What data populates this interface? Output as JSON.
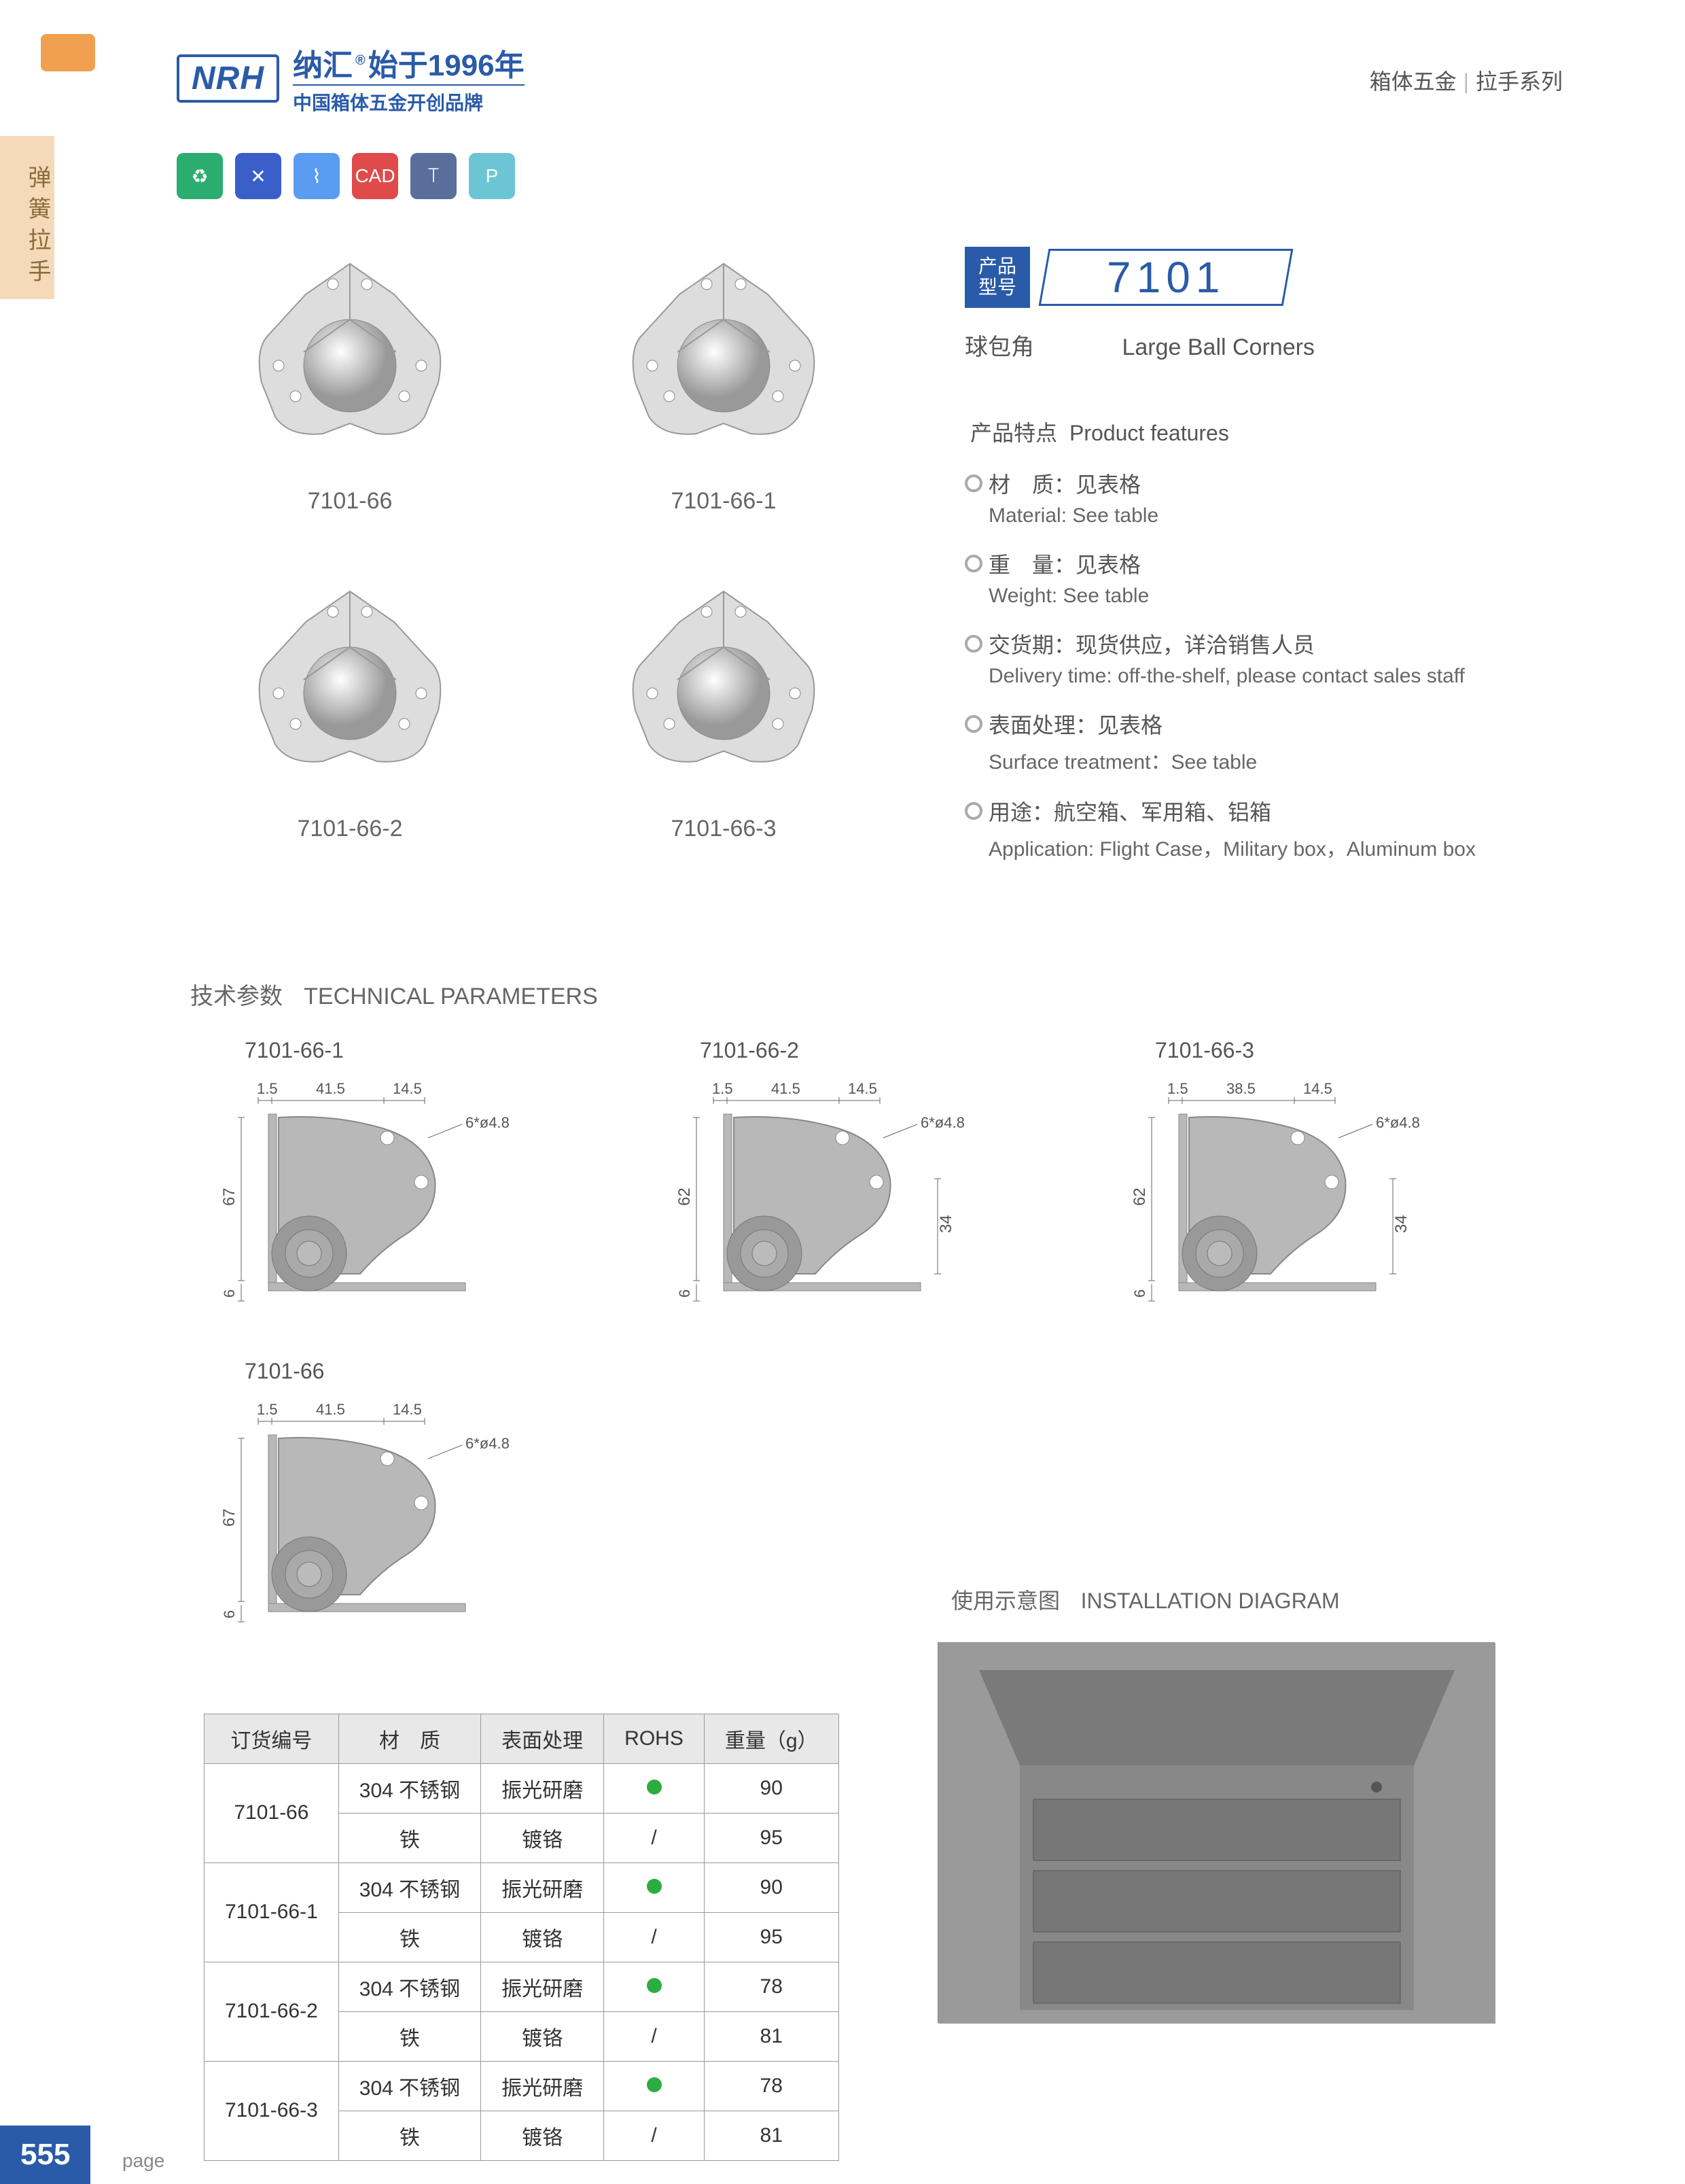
{
  "header": {
    "logo": "NRH",
    "brand_cn": "纳汇",
    "brand_year": "®",
    "brand_since": "始于1996年",
    "brand_sub": "中国箱体五金开创品牌",
    "right_cat1": "箱体五金",
    "right_cat2": "拉手系列"
  },
  "side_tab": "弹簧拉手",
  "feature_icons": [
    {
      "bg": "#2bad6f",
      "txt": "♻"
    },
    {
      "bg": "#3a5fc8",
      "txt": "✕"
    },
    {
      "bg": "#5a9cf0",
      "txt": "⌇"
    },
    {
      "bg": "#e04a4a",
      "txt": "CAD"
    },
    {
      "bg": "#5a6e9c",
      "txt": "⟙"
    },
    {
      "bg": "#6bc5d4",
      "txt": "P"
    }
  ],
  "products": [
    {
      "label": "7101-66"
    },
    {
      "label": "7101-66-1"
    },
    {
      "label": "7101-66-2"
    },
    {
      "label": "7101-66-3"
    }
  ],
  "model": {
    "tag_l1": "产品",
    "tag_l2": "型号",
    "number": "7101",
    "name_cn": "球包角",
    "name_en": "Large Ball Corners"
  },
  "features_title_cn": "产品特点",
  "features_title_en": "Product features",
  "features": [
    {
      "cn": "材　质：见表格",
      "en": "Material: See table"
    },
    {
      "cn": "重　量：见表格",
      "en": "Weight: See table"
    },
    {
      "cn": "交货期：现货供应，详洽销售人员",
      "en": "Delivery time: off-the-shelf, please contact sales staff"
    },
    {
      "cn": "表面处理：见表格",
      "en": "Surface treatment：See table"
    },
    {
      "cn": "用途：航空箱、军用箱、铝箱",
      "en": "Application: Flight Case，Military box，Aluminum box"
    }
  ],
  "tech_title_cn": "技术参数",
  "tech_title_en": "TECHNICAL PARAMETERS",
  "diagrams": [
    {
      "label": "7101-66-1",
      "d1": "1.5",
      "d2": "41.5",
      "d3": "14.5",
      "hole": "6*ø4.8",
      "h": "67",
      "b": "6"
    },
    {
      "label": "7101-66-2",
      "d1": "1.5",
      "d2": "41.5",
      "d3": "14.5",
      "hole": "6*ø4.8",
      "h": "62",
      "b": "6",
      "h2": "34"
    },
    {
      "label": "7101-66-3",
      "d1": "1.5",
      "d2": "38.5",
      "d3": "14.5",
      "hole": "6*ø4.8",
      "h": "62",
      "b": "6",
      "h2": "34"
    },
    {
      "label": "7101-66",
      "d1": "1.5",
      "d2": "41.5",
      "d3": "14.5",
      "hole": "6*ø4.8",
      "h": "67",
      "b": "6"
    }
  ],
  "table": {
    "headers": [
      "订货编号",
      "材　质",
      "表面处理",
      "ROHS",
      "重量（g）"
    ],
    "rows": [
      [
        "7101-66",
        "304 不锈钢",
        "振光研磨",
        "dot",
        "90"
      ],
      [
        "",
        "铁",
        "镀铬",
        "/",
        "95"
      ],
      [
        "7101-66-1",
        "304 不锈钢",
        "振光研磨",
        "dot",
        "90"
      ],
      [
        "",
        "铁",
        "镀铬",
        "/",
        "95"
      ],
      [
        "7101-66-2",
        "304 不锈钢",
        "振光研磨",
        "dot",
        "78"
      ],
      [
        "",
        "铁",
        "镀铬",
        "/",
        "81"
      ],
      [
        "7101-66-3",
        "304 不锈钢",
        "振光研磨",
        "dot",
        "78"
      ],
      [
        "",
        "铁",
        "镀铬",
        "/",
        "81"
      ]
    ]
  },
  "install_title_cn": "使用示意图",
  "install_title_en": "INSTALLATION DIAGRAM",
  "page_num": "555",
  "page_txt": "page"
}
